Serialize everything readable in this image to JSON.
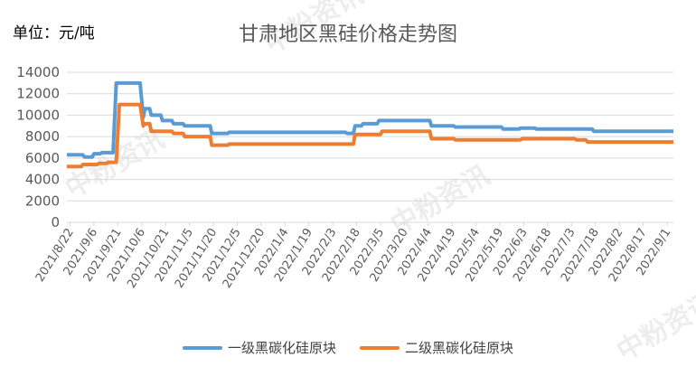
{
  "unit_label": "单位：元/吨",
  "watermark": "中粉资讯",
  "colors": {
    "series1": "#5B9BD5",
    "series2": "#ED7D31",
    "grid": "#d9d9d9",
    "axis_text": "#595959"
  },
  "chart_data": {
    "type": "line",
    "title": "甘肃地区黑硅价格走势图",
    "ylim": [
      0,
      14000
    ],
    "y_ticks": [
      0,
      2000,
      4000,
      6000,
      8000,
      10000,
      12000,
      14000
    ],
    "x_range": [
      "2021-08-20",
      "2022-09-05"
    ],
    "x_tick_labels": [
      "2021/8/22",
      "2021/9/6",
      "2021/9/21",
      "2021/10/6",
      "2021/10/21",
      "2021/11/5",
      "2021/11/20",
      "2021/12/5",
      "2021/12/20",
      "2022/1/4",
      "2022/1/19",
      "2022/2/3",
      "2022/2/18",
      "2022/3/5",
      "2022/3/20",
      "2022/4/4",
      "2022/4/19",
      "2022/5/4",
      "2022/5/19",
      "2022/6/3",
      "2022/6/18",
      "2022/7/3",
      "2022/7/18",
      "2022/8/2",
      "2022/8/17",
      "2022/9/1"
    ],
    "grid": true,
    "legend_position": "bottom",
    "series": [
      {
        "name": "一级黑碳化硅原块",
        "points": [
          [
            "2021-08-20",
            6300
          ],
          [
            "2021-08-30",
            6300
          ],
          [
            "2021-08-31",
            6100
          ],
          [
            "2021-09-05",
            6100
          ],
          [
            "2021-09-06",
            6400
          ],
          [
            "2021-09-10",
            6400
          ],
          [
            "2021-09-11",
            6500
          ],
          [
            "2021-09-18",
            6500
          ],
          [
            "2021-09-20",
            13000
          ],
          [
            "2021-10-05",
            13000
          ],
          [
            "2021-10-07",
            9800
          ],
          [
            "2021-10-08",
            10600
          ],
          [
            "2021-10-11",
            10600
          ],
          [
            "2021-10-12",
            10000
          ],
          [
            "2021-10-18",
            10000
          ],
          [
            "2021-10-19",
            9500
          ],
          [
            "2021-10-25",
            9500
          ],
          [
            "2021-10-26",
            9200
          ],
          [
            "2021-11-01",
            9200
          ],
          [
            "2021-11-02",
            9000
          ],
          [
            "2021-11-18",
            9000
          ],
          [
            "2021-11-19",
            8300
          ],
          [
            "2021-11-29",
            8300
          ],
          [
            "2021-11-30",
            8400
          ],
          [
            "2022-02-11",
            8400
          ],
          [
            "2022-02-12",
            8300
          ],
          [
            "2022-02-16",
            8300
          ],
          [
            "2022-02-17",
            9000
          ],
          [
            "2022-02-21",
            9000
          ],
          [
            "2022-02-22",
            9200
          ],
          [
            "2022-03-03",
            9200
          ],
          [
            "2022-03-04",
            9500
          ],
          [
            "2022-04-05",
            9500
          ],
          [
            "2022-04-06",
            9000
          ],
          [
            "2022-04-20",
            9000
          ],
          [
            "2022-04-21",
            8900
          ],
          [
            "2022-05-20",
            8900
          ],
          [
            "2022-05-21",
            8700
          ],
          [
            "2022-05-31",
            8700
          ],
          [
            "2022-06-01",
            8800
          ],
          [
            "2022-06-10",
            8800
          ],
          [
            "2022-06-11",
            8700
          ],
          [
            "2022-07-16",
            8700
          ],
          [
            "2022-07-17",
            8500
          ],
          [
            "2022-09-05",
            8500
          ]
        ]
      },
      {
        "name": "二级黑碳化硅原块",
        "points": [
          [
            "2021-08-20",
            5200
          ],
          [
            "2021-08-29",
            5200
          ],
          [
            "2021-08-30",
            5400
          ],
          [
            "2021-09-08",
            5400
          ],
          [
            "2021-09-09",
            5500
          ],
          [
            "2021-09-14",
            5500
          ],
          [
            "2021-09-15",
            5600
          ],
          [
            "2021-09-20",
            5600
          ],
          [
            "2021-09-22",
            11000
          ],
          [
            "2021-10-05",
            11000
          ],
          [
            "2021-10-07",
            9000
          ],
          [
            "2021-10-08",
            9200
          ],
          [
            "2021-10-11",
            9200
          ],
          [
            "2021-10-12",
            8500
          ],
          [
            "2021-10-25",
            8500
          ],
          [
            "2021-10-26",
            8300
          ],
          [
            "2021-11-01",
            8300
          ],
          [
            "2021-11-02",
            8000
          ],
          [
            "2021-11-18",
            8000
          ],
          [
            "2021-11-19",
            7200
          ],
          [
            "2021-11-29",
            7200
          ],
          [
            "2021-11-30",
            7300
          ],
          [
            "2022-02-16",
            7300
          ],
          [
            "2022-02-17",
            8200
          ],
          [
            "2022-03-05",
            8200
          ],
          [
            "2022-03-06",
            8500
          ],
          [
            "2022-04-05",
            8500
          ],
          [
            "2022-04-06",
            7800
          ],
          [
            "2022-04-20",
            7800
          ],
          [
            "2022-04-21",
            7700
          ],
          [
            "2022-06-01",
            7700
          ],
          [
            "2022-06-02",
            7800
          ],
          [
            "2022-07-05",
            7800
          ],
          [
            "2022-07-06",
            7700
          ],
          [
            "2022-07-12",
            7700
          ],
          [
            "2022-07-13",
            7500
          ],
          [
            "2022-09-05",
            7500
          ]
        ]
      }
    ]
  }
}
